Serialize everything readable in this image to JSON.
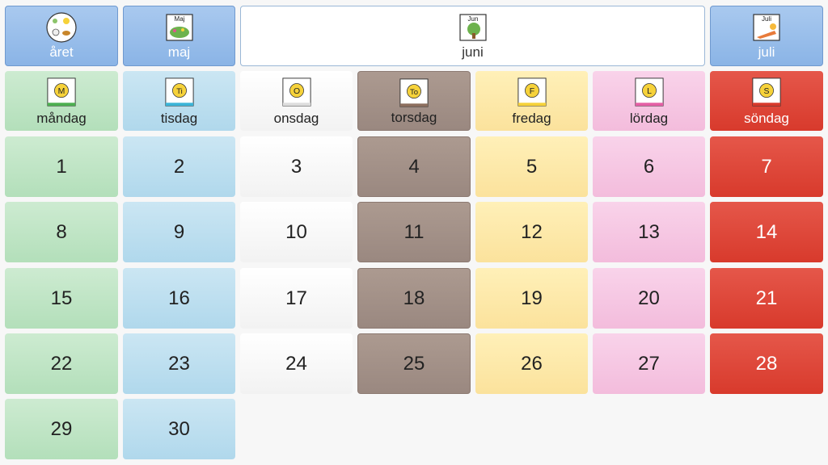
{
  "nav": {
    "year_label": "året",
    "prev_month_label": "maj",
    "prev_month_icon_text": "Maj",
    "current_month_label": "juni",
    "current_month_icon_text": "Jun",
    "next_month_label": "juli",
    "next_month_icon_text": "Juli"
  },
  "weekdays": [
    {
      "label": "måndag",
      "letter": "M",
      "color": "#b3dfba"
    },
    {
      "label": "tisdag",
      "letter": "Ti",
      "color": "#b0d8ec"
    },
    {
      "label": "onsdag",
      "letter": "O",
      "color": "#ffffff"
    },
    {
      "label": "torsdag",
      "letter": "To",
      "color": "#9a8880"
    },
    {
      "label": "fredag",
      "letter": "F",
      "color": "#fbe29c"
    },
    {
      "label": "lördag",
      "letter": "L",
      "color": "#f3bcdc"
    },
    {
      "label": "söndag",
      "letter": "S",
      "color": "#d83a2c"
    }
  ],
  "days": [
    "1",
    "2",
    "3",
    "4",
    "5",
    "6",
    "7",
    "8",
    "9",
    "10",
    "11",
    "12",
    "13",
    "14",
    "15",
    "16",
    "17",
    "18",
    "19",
    "20",
    "21",
    "22",
    "23",
    "24",
    "25",
    "26",
    "27",
    "28",
    "29",
    "30"
  ]
}
